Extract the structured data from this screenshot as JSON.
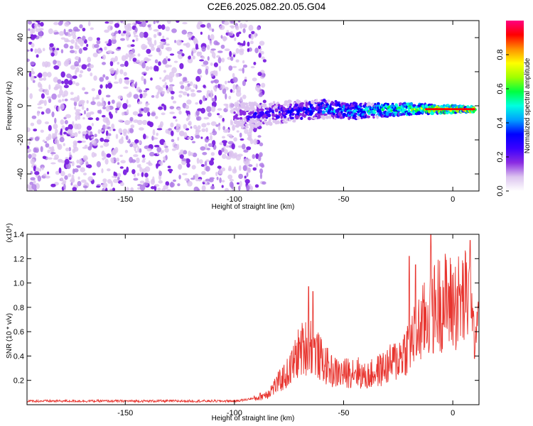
{
  "title": "C2E6.2025.082.20.05.G04",
  "chart_data": [
    {
      "type": "heatmap",
      "name": "spectrogram",
      "xlabel": "Height of straight line (km)",
      "ylabel": "Frequency (Hz)",
      "xlim": [
        -195,
        12
      ],
      "ylim": [
        -50,
        50
      ],
      "xticks": [
        -150,
        -100,
        -50,
        0
      ],
      "yticks": [
        -40,
        -20,
        0,
        20,
        40
      ],
      "grid": false,
      "colorbar": {
        "label": "Normalized spectral amplitude",
        "range": [
          0,
          1
        ],
        "ticks": [
          "0.0",
          "0.2",
          "0.4",
          "0.6",
          "0.8"
        ],
        "colormap": [
          "#ffffff",
          "#dcc4ef",
          "#8a2be2",
          "#3a00ff",
          "#0000ff",
          "#00a0ff",
          "#00ffe0",
          "#00ff40",
          "#a0ff00",
          "#ffff00",
          "#ff9000",
          "#ff0000",
          "#ff0080"
        ]
      },
      "features": {
        "noise_region_x": [
          -195,
          -90
        ],
        "signal_track": [
          {
            "x": -100,
            "freq": -6,
            "amp": 0.25
          },
          {
            "x": -80,
            "freq": -4,
            "amp": 0.35
          },
          {
            "x": -60,
            "freq": -2,
            "amp": 0.45
          },
          {
            "x": -40,
            "freq": -3,
            "amp": 0.55
          },
          {
            "x": -20,
            "freq": -2,
            "amp": 0.7
          },
          {
            "x": 0,
            "freq": -2,
            "amp": 0.9
          },
          {
            "x": 10,
            "freq": -2,
            "amp": 0.9
          }
        ]
      }
    },
    {
      "type": "line",
      "name": "snr",
      "xlabel": "Height of straight line (km)",
      "ylabel": "SNR (10 * v/v)",
      "yunit": "(x10⁴)",
      "xlim": [
        -195,
        12
      ],
      "ylim": [
        0,
        1.4
      ],
      "xticks": [
        -150,
        -100,
        -50,
        0
      ],
      "yticks": [
        0.2,
        0.4,
        0.6,
        0.8,
        1.0,
        1.2,
        1.4
      ],
      "ytick_labels": [
        "0.2",
        "0.4",
        "0.6",
        "0.8",
        "1.0",
        "1.2",
        "1.4"
      ],
      "grid": false,
      "color": "#e8352f",
      "x": [
        -195,
        -180,
        -160,
        -140,
        -120,
        -100,
        -95,
        -90,
        -85,
        -80,
        -75,
        -70,
        -65,
        -60,
        -55,
        -50,
        -45,
        -40,
        -35,
        -30,
        -25,
        -20,
        -15,
        -10,
        -5,
        0,
        5,
        8,
        10,
        12
      ],
      "y": [
        0.03,
        0.03,
        0.03,
        0.03,
        0.03,
        0.03,
        0.04,
        0.06,
        0.1,
        0.2,
        0.3,
        0.5,
        0.55,
        0.4,
        0.3,
        0.28,
        0.32,
        0.25,
        0.3,
        0.35,
        0.42,
        0.55,
        0.7,
        0.85,
        0.95,
        0.92,
        0.95,
        1.0,
        0.5,
        0.9
      ],
      "spikes": [
        {
          "x": -66,
          "y": 0.97
        },
        {
          "x": -64,
          "y": 0.93
        },
        {
          "x": -20,
          "y": 1.22
        },
        {
          "x": -17,
          "y": 1.15
        },
        {
          "x": -10,
          "y": 1.4
        },
        {
          "x": 8,
          "y": 1.35
        },
        {
          "x": 10,
          "y": 0.38
        }
      ]
    }
  ]
}
